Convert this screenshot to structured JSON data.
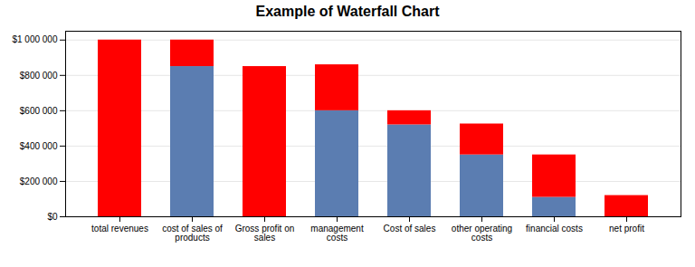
{
  "chart_data": {
    "type": "bar",
    "title": "Example of Waterfall Chart",
    "categories": [
      "total revenues",
      "cost of sales of\nproducts",
      "Gross profit on\nsales",
      "management\ncosts",
      "Cost of sales",
      "other operating\ncosts",
      "financial costs",
      "net profit"
    ],
    "series": [
      {
        "color": "#5B7DB1",
        "values": [
          0,
          850000,
          0,
          600000,
          520000,
          350000,
          110000,
          0
        ]
      },
      {
        "color": "#FF0000",
        "values": [
          1000000,
          150000,
          850000,
          260000,
          80000,
          175000,
          240000,
          120000
        ]
      }
    ],
    "stacked": true,
    "ylim": [
      0,
      1050000
    ],
    "yticks": [
      {
        "value": 0,
        "label": "$0"
      },
      {
        "value": 200000,
        "label": "$200 000"
      },
      {
        "value": 400000,
        "label": "$400 000"
      },
      {
        "value": 600000,
        "label": "$600 000"
      },
      {
        "value": 800000,
        "label": "$800 000"
      },
      {
        "value": 1000000,
        "label": "$1 000 000"
      }
    ],
    "grid": true
  }
}
